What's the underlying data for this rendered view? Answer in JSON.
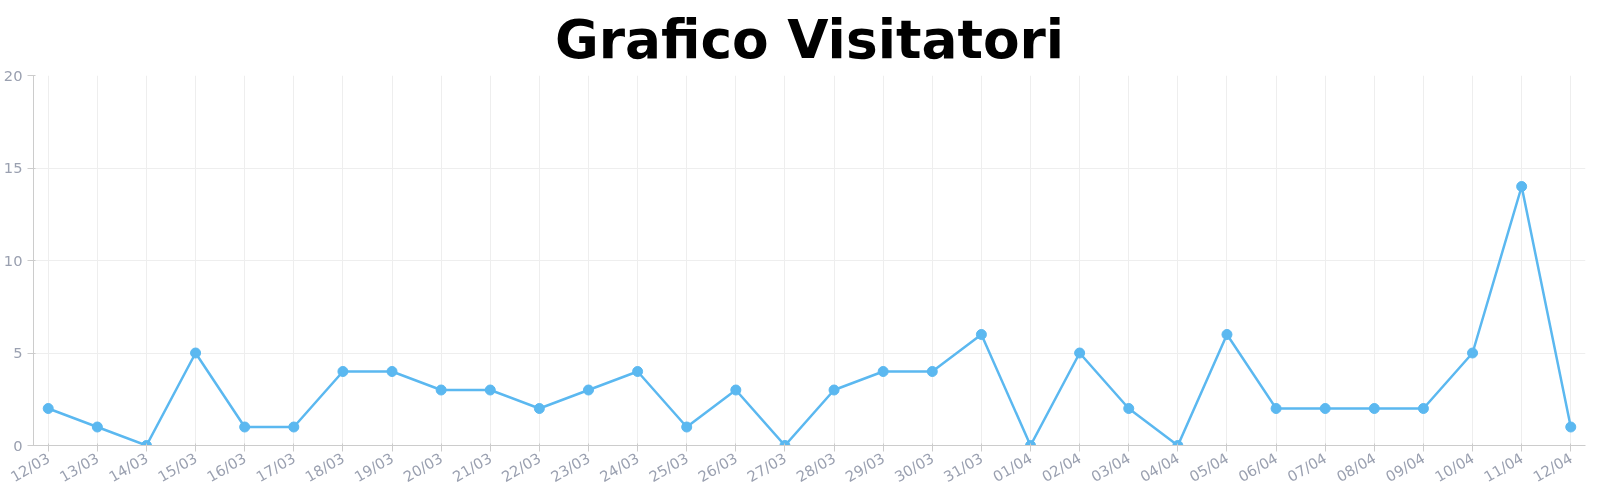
{
  "chart_data": {
    "type": "line",
    "title": "Grafico Visitatori",
    "categories": [
      "12/03",
      "13/03",
      "14/03",
      "15/03",
      "16/03",
      "17/03",
      "18/03",
      "19/03",
      "20/03",
      "21/03",
      "22/03",
      "23/03",
      "24/03",
      "25/03",
      "26/03",
      "27/03",
      "28/03",
      "29/03",
      "30/03",
      "31/03",
      "01/04",
      "02/04",
      "03/04",
      "04/04",
      "05/04",
      "06/04",
      "07/04",
      "08/04",
      "09/04",
      "10/04",
      "11/04",
      "12/04"
    ],
    "series": [
      {
        "color": "#5bb8f0",
        "values": [
          2,
          1,
          0,
          5,
          1,
          1,
          4,
          4,
          3,
          3,
          2,
          3,
          4,
          1,
          3,
          0,
          3,
          4,
          4,
          6,
          0,
          5,
          2,
          0,
          6,
          2,
          2,
          2,
          2,
          5,
          14,
          1
        ]
      }
    ],
    "ylim": [
      0,
      20
    ],
    "yticks": [
      0,
      5,
      10,
      15,
      20
    ],
    "grid": true,
    "marker": "circle",
    "line_style": "solid"
  }
}
